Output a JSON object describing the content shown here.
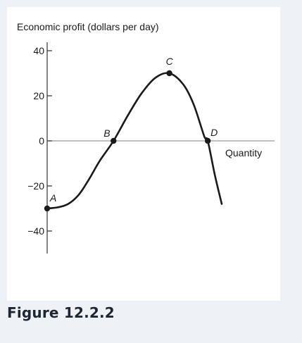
{
  "figure": {
    "caption": "Figure 12.2.2"
  },
  "chart_data": {
    "type": "line",
    "title": "Economic profit (dollars per day)",
    "xlabel": "Quantity",
    "ylabel": "Economic profit (dollars per day)",
    "ylim": [
      -50,
      45
    ],
    "yticks": [
      40,
      20,
      0,
      -20,
      -40
    ],
    "ytick_labels": [
      "40",
      "20",
      "0",
      "−20",
      "−40"
    ],
    "x_axis_at_y": 0,
    "grid": false,
    "legend": "none",
    "colors": {
      "curve": "#1a1a1a",
      "axis": "#333333",
      "zero_line": "#9a9a9a"
    },
    "series": [
      {
        "points": [
          {
            "x": 0.0,
            "y": -30
          },
          {
            "x": 0.6,
            "y": -29.5
          },
          {
            "x": 1.2,
            "y": -28
          },
          {
            "x": 1.8,
            "y": -24
          },
          {
            "x": 2.4,
            "y": -17
          },
          {
            "x": 3.0,
            "y": -9
          },
          {
            "x": 3.8,
            "y": 0
          },
          {
            "x": 4.6,
            "y": 11
          },
          {
            "x": 5.4,
            "y": 21
          },
          {
            "x": 6.2,
            "y": 28
          },
          {
            "x": 7.0,
            "y": 30
          },
          {
            "x": 7.8,
            "y": 25
          },
          {
            "x": 8.4,
            "y": 16
          },
          {
            "x": 9.0,
            "y": 2
          },
          {
            "x": 9.2,
            "y": 0
          },
          {
            "x": 9.6,
            "y": -15
          },
          {
            "x": 10.0,
            "y": -28
          }
        ]
      }
    ],
    "marked_points": [
      {
        "label": "A",
        "x": 0.0,
        "y": -30
      },
      {
        "label": "B",
        "x": 3.8,
        "y": 0
      },
      {
        "label": "C",
        "x": 7.0,
        "y": 30
      },
      {
        "label": "D",
        "x": 9.2,
        "y": 0
      }
    ]
  }
}
